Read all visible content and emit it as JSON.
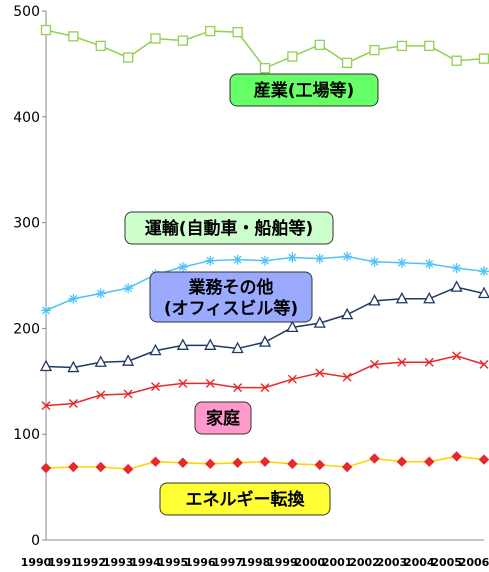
{
  "chart_data": {
    "type": "line",
    "x": [
      "1990",
      "1991",
      "1992",
      "1993",
      "1994",
      "1995",
      "1996",
      "1997",
      "1998",
      "1999",
      "2000",
      "2001",
      "2002",
      "2003",
      "2004",
      "2005",
      "2006"
    ],
    "ylim": [
      0,
      500
    ],
    "yticks": [
      0,
      100,
      200,
      300,
      400,
      500
    ],
    "series": [
      {
        "name": "産業(工場等)",
        "color": "#92d050",
        "marker": "square-open",
        "values": [
          482,
          476,
          467,
          456,
          474,
          472,
          481,
          480,
          446,
          457,
          468,
          451,
          463,
          467,
          467,
          453,
          455
        ]
      },
      {
        "name": "運輸(自動車・船舶等)",
        "color": "#4fc3f7",
        "marker": "asterisk",
        "values": [
          217,
          228,
          233,
          238,
          251,
          258,
          264,
          265,
          264,
          267,
          266,
          268,
          263,
          262,
          261,
          257,
          254
        ]
      },
      {
        "name": "業務その他(オフィスビル等)",
        "color": "#1f3864",
        "marker": "triangle-open",
        "values": [
          164,
          163,
          168,
          169,
          179,
          184,
          184,
          181,
          187,
          201,
          205,
          213,
          226,
          228,
          228,
          239,
          233
        ]
      },
      {
        "name": "家庭",
        "color": "#e8282b",
        "marker": "x",
        "values": [
          127,
          129,
          137,
          138,
          145,
          148,
          148,
          144,
          144,
          152,
          158,
          154,
          166,
          168,
          168,
          174,
          166
        ]
      },
      {
        "name": "エネルギー転換",
        "color": "#e8282b",
        "line_color": "#ffd400",
        "marker": "diamond",
        "values": [
          68,
          69,
          69,
          67,
          74,
          73,
          72,
          73,
          74,
          72,
          71,
          69,
          77,
          74,
          74,
          79,
          76
        ]
      }
    ],
    "annotations": [
      {
        "text": "産業(工場等)",
        "fill": "#66ff66"
      },
      {
        "text": "運輸(自動車・船舶等)",
        "fill": "#ccffcc"
      },
      {
        "text": "業務その他",
        "text2": "(オフィスビル等)",
        "fill": "#99aaff"
      },
      {
        "text": "家庭",
        "fill": "#ff99cc"
      },
      {
        "text": "エネルギー転換",
        "fill": "#ffff33"
      }
    ],
    "grid": false
  }
}
